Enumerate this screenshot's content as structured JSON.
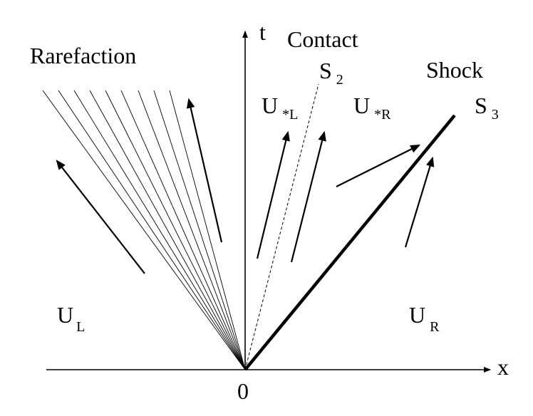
{
  "diagram": {
    "axes": {
      "x_label": "x",
      "t_label": "t",
      "origin_label": "0"
    },
    "waves": {
      "rarefaction": {
        "label": "Rarefaction",
        "fan_lines": 9
      },
      "contact": {
        "label": "Contact",
        "name_main": "S",
        "name_sub": "2"
      },
      "shock": {
        "label": "Shock",
        "name_main": "S",
        "name_sub": "3"
      }
    },
    "states": [
      {
        "id": "left",
        "main": "U",
        "sub": "L"
      },
      {
        "id": "star-left",
        "main": "U",
        "sub": "*L"
      },
      {
        "id": "star-right",
        "main": "U",
        "sub": "*R"
      },
      {
        "id": "right",
        "main": "U",
        "sub": "R"
      }
    ],
    "colors": {
      "ink": "#000000",
      "background": "#ffffff"
    }
  }
}
